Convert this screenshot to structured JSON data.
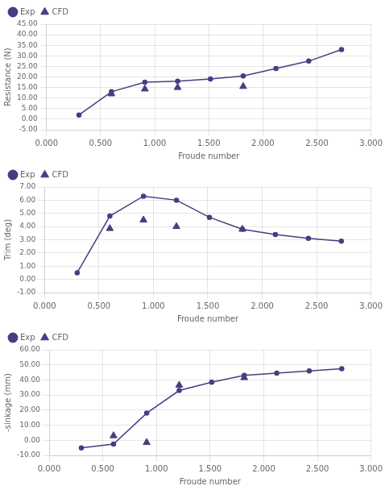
{
  "chart_data": [
    {
      "type": "line",
      "xlabel": "Froude number",
      "ylabel": "Resistance (N)",
      "xlim": [
        0.0,
        3.0
      ],
      "xticks": [
        {
          "value": 0.0,
          "label": "0.000"
        },
        {
          "value": 0.5,
          "label": "0.500"
        },
        {
          "value": 1.0,
          "label": "1.000"
        },
        {
          "value": 1.5,
          "label": "1.500"
        },
        {
          "value": 2.0,
          "label": "2.000"
        },
        {
          "value": 2.5,
          "label": "2.500"
        },
        {
          "value": 3.0,
          "label": "3.000"
        }
      ],
      "ylim": [
        -5.0,
        45.0
      ],
      "yticks": [
        {
          "value": -5.0,
          "label": "-5.00"
        },
        {
          "value": 0.0,
          "label": "0.00"
        },
        {
          "value": 5.0,
          "label": "5.00"
        },
        {
          "value": 10.0,
          "label": "10.00"
        },
        {
          "value": 15.0,
          "label": "15.00"
        },
        {
          "value": 20.0,
          "label": "20.00"
        },
        {
          "value": 25.0,
          "label": "25.00"
        },
        {
          "value": 30.0,
          "label": "30.00"
        },
        {
          "value": 35.0,
          "label": "35.00"
        },
        {
          "value": 40.0,
          "label": "40.00"
        },
        {
          "value": 45.0,
          "label": "45.00"
        }
      ],
      "grid": true,
      "legend": "upper left",
      "series": [
        {
          "name": "Exp",
          "type": "line",
          "color": "#4d3a82",
          "marker": "circle",
          "line_style": "solid",
          "x": [
            0.3,
            0.6,
            0.909,
            1.212,
            1.515,
            1.818,
            2.121,
            2.424,
            2.727
          ],
          "values": [
            2.0,
            13.0,
            17.5,
            18.0,
            19.0,
            20.5,
            24.0,
            27.5,
            33.0
          ]
        },
        {
          "name": "CFD",
          "type": "scatter",
          "color": "#4d3a82",
          "marker": "triangle",
          "x": [
            0.6,
            0.909,
            1.212,
            1.818
          ],
          "values": [
            12.0,
            14.3,
            15.0,
            15.5
          ]
        }
      ]
    },
    {
      "type": "line",
      "xlabel": "Froude number",
      "ylabel": "Trim (deg)",
      "xlim": [
        0.0,
        3.0
      ],
      "xticks": [
        {
          "value": 0.0,
          "label": "0.000"
        },
        {
          "value": 0.5,
          "label": "0.500"
        },
        {
          "value": 1.0,
          "label": "1.000"
        },
        {
          "value": 1.5,
          "label": "1.500"
        },
        {
          "value": 2.0,
          "label": "2.000"
        },
        {
          "value": 2.5,
          "label": "2.500"
        },
        {
          "value": 3.0,
          "label": "3.000"
        }
      ],
      "ylim": [
        -1.0,
        7.0
      ],
      "yticks": [
        {
          "value": -1.0,
          "label": "-1.00"
        },
        {
          "value": 0.0,
          "label": "0.00"
        },
        {
          "value": 1.0,
          "label": "1.00"
        },
        {
          "value": 2.0,
          "label": "2.00"
        },
        {
          "value": 3.0,
          "label": "3.00"
        },
        {
          "value": 4.0,
          "label": "4.00"
        },
        {
          "value": 5.0,
          "label": "5.00"
        },
        {
          "value": 6.0,
          "label": "6.00"
        },
        {
          "value": 7.0,
          "label": "7.00"
        }
      ],
      "grid": true,
      "legend": "upper left",
      "series": [
        {
          "name": "Exp",
          "type": "line",
          "color": "#4d3a82",
          "marker": "circle",
          "line_style": "solid",
          "x": [
            0.3,
            0.6,
            0.909,
            1.212,
            1.515,
            1.818,
            2.121,
            2.424,
            2.727
          ],
          "values": [
            0.5,
            4.8,
            6.3,
            6.0,
            4.7,
            3.8,
            3.4,
            3.1,
            2.9
          ]
        },
        {
          "name": "CFD",
          "type": "scatter",
          "color": "#4d3a82",
          "marker": "triangle",
          "x": [
            0.6,
            0.909,
            1.212,
            1.818
          ],
          "values": [
            3.85,
            4.5,
            4.0,
            3.8
          ]
        }
      ]
    },
    {
      "type": "line",
      "xlabel": "Froude number",
      "ylabel": "-sinkage (mm)",
      "xlim": [
        0.0,
        3.0
      ],
      "xticks": [
        {
          "value": 0.0,
          "label": "0.000"
        },
        {
          "value": 0.5,
          "label": "0.500"
        },
        {
          "value": 1.0,
          "label": "1.000"
        },
        {
          "value": 1.5,
          "label": "1.500"
        },
        {
          "value": 2.0,
          "label": "2.000"
        },
        {
          "value": 2.5,
          "label": "2.500"
        },
        {
          "value": 3.0,
          "label": "3.000"
        }
      ],
      "ylim": [
        -10.0,
        60.0
      ],
      "yticks": [
        {
          "value": -10.0,
          "label": "-10.00"
        },
        {
          "value": 0.0,
          "label": "0.00"
        },
        {
          "value": 10.0,
          "label": "10.00"
        },
        {
          "value": 20.0,
          "label": "20.00"
        },
        {
          "value": 30.0,
          "label": "30.00"
        },
        {
          "value": 40.0,
          "label": "40.00"
        },
        {
          "value": 50.0,
          "label": "50.00"
        },
        {
          "value": 60.0,
          "label": "60.00"
        }
      ],
      "grid": true,
      "legend": "upper left",
      "series": [
        {
          "name": "Exp",
          "type": "line",
          "color": "#4d3a82",
          "marker": "circle",
          "line_style": "solid",
          "x": [
            0.3,
            0.6,
            0.909,
            1.212,
            1.515,
            1.818,
            2.121,
            2.424,
            2.727
          ],
          "values": [
            -5.0,
            -2.5,
            18.0,
            33.0,
            38.5,
            43.0,
            44.5,
            46.0,
            47.5
          ]
        },
        {
          "name": "CFD",
          "type": "scatter",
          "color": "#4d3a82",
          "marker": "triangle",
          "x": [
            0.6,
            0.909,
            1.212,
            1.818
          ],
          "values": [
            3.0,
            -1.5,
            36.5,
            41.5
          ]
        }
      ]
    }
  ]
}
